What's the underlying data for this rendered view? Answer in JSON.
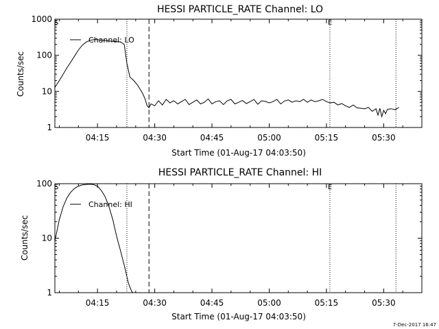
{
  "footer": {
    "timestamp": "7-Dec-2017 16:47"
  },
  "chart_data": [
    {
      "type": "line",
      "title": "HESSI PARTICLE_RATE Channel: LO",
      "xlabel": "Start Time (01-Aug-17 04:03:50)",
      "ylabel": "Counts/sec",
      "y_scale": "log",
      "ylim": [
        1,
        1000
      ],
      "xlim": [
        "04:03:50",
        "05:40:00"
      ],
      "y_ticks": [
        "1",
        "10",
        "100",
        "1000"
      ],
      "x_ticks": [
        "04:15",
        "04:30",
        "04:45",
        "05:00",
        "05:15",
        "05:30"
      ],
      "x_tick_minutes": [
        15,
        30,
        45,
        60,
        75,
        90
      ],
      "legend": {
        "label": "Channel: LO",
        "placement": "top-left"
      },
      "markers": [
        {
          "minute": 4.2,
          "label": "S"
        },
        {
          "minute": 75.9,
          "label": "E"
        }
      ],
      "vlines_dotted_minutes": [
        22.7,
        75.9,
        93.2
      ],
      "vline_dashed_minutes": [
        28.5
      ],
      "series": [
        {
          "x_minutes": [
            3.85,
            5,
            6,
            7,
            8,
            9,
            10,
            11,
            12,
            13,
            14,
            15,
            16,
            17,
            18,
            19,
            20,
            21,
            22,
            22.7,
            23.5,
            24.5,
            25.5,
            26.5,
            27,
            27.5,
            28,
            28.5,
            29,
            30,
            31,
            32,
            33,
            34,
            35,
            36,
            37,
            38,
            39,
            40,
            41,
            42,
            43,
            44,
            45,
            46,
            47,
            48,
            49,
            50,
            51,
            52,
            53,
            54,
            55,
            56,
            57,
            58,
            59,
            60,
            61,
            62,
            63,
            64,
            65,
            66,
            67,
            68,
            69,
            70,
            71,
            72,
            73,
            74,
            75,
            76,
            77,
            78,
            79,
            80,
            81,
            82,
            83,
            84,
            85,
            86,
            87,
            88,
            88.5,
            89,
            89.5,
            90,
            90.5,
            91,
            92,
            93,
            94
          ],
          "values": [
            13,
            20,
            30,
            45,
            65,
            95,
            140,
            190,
            230,
            260,
            270,
            270,
            265,
            255,
            250,
            245,
            240,
            235,
            200,
            60,
            25,
            20,
            15,
            10,
            8,
            6,
            4,
            3.5,
            4.5,
            4,
            5.5,
            4.2,
            6,
            4.8,
            5.5,
            4.5,
            5.2,
            6,
            4.3,
            5,
            5.8,
            4.5,
            5,
            6.2,
            4.5,
            5.2,
            5.5,
            4.3,
            5.5,
            6,
            4.5,
            5,
            5.6,
            4.6,
            5.2,
            6,
            4.4,
            5.5,
            5.3,
            4.8,
            5.2,
            6,
            4.5,
            5.4,
            5.8,
            5,
            5.5,
            5.2,
            6,
            5,
            5.8,
            5.2,
            5.5,
            6,
            5.2,
            4.8,
            5,
            4.2,
            4.6,
            4,
            3.6,
            4.2,
            3.5,
            3.4,
            3.3,
            3.6,
            2.8,
            3.3,
            2.2,
            3.4,
            2,
            3,
            2.4,
            3.2,
            3.3,
            3.1,
            3.6
          ]
        }
      ]
    },
    {
      "type": "line",
      "title": "HESSI PARTICLE_RATE Channel: HI",
      "xlabel": "Start Time (01-Aug-17 04:03:50)",
      "ylabel": "Counts/sec",
      "y_scale": "log",
      "ylim": [
        1,
        100
      ],
      "xlim": [
        "04:03:50",
        "05:40:00"
      ],
      "y_ticks": [
        "1",
        "10",
        "100"
      ],
      "x_ticks": [
        "04:15",
        "04:30",
        "04:45",
        "05:00",
        "05:15",
        "05:30"
      ],
      "x_tick_minutes": [
        15,
        30,
        45,
        60,
        75,
        90
      ],
      "legend": {
        "label": "Channel: HI",
        "placement": "top-left"
      },
      "markers": [
        {
          "minute": 4.2,
          "label": "S"
        },
        {
          "minute": 75.9,
          "label": "E"
        }
      ],
      "vlines_dotted_minutes": [
        22.7,
        75.9,
        93.2
      ],
      "vline_dashed_minutes": [
        28.5
      ],
      "series": [
        {
          "x_minutes": [
            3.85,
            5,
            6,
            7,
            8,
            9,
            10,
            11,
            12,
            13,
            14,
            15,
            16,
            17,
            18,
            19,
            20,
            21,
            22,
            22.5,
            23,
            23.5,
            24,
            24.3
          ],
          "values": [
            9,
            22,
            38,
            55,
            70,
            82,
            90,
            95,
            97,
            98,
            96,
            90,
            75,
            58,
            38,
            22,
            11,
            6,
            3.2,
            2.3,
            1.6,
            1.25,
            1.05,
            0.9
          ]
        }
      ]
    }
  ]
}
